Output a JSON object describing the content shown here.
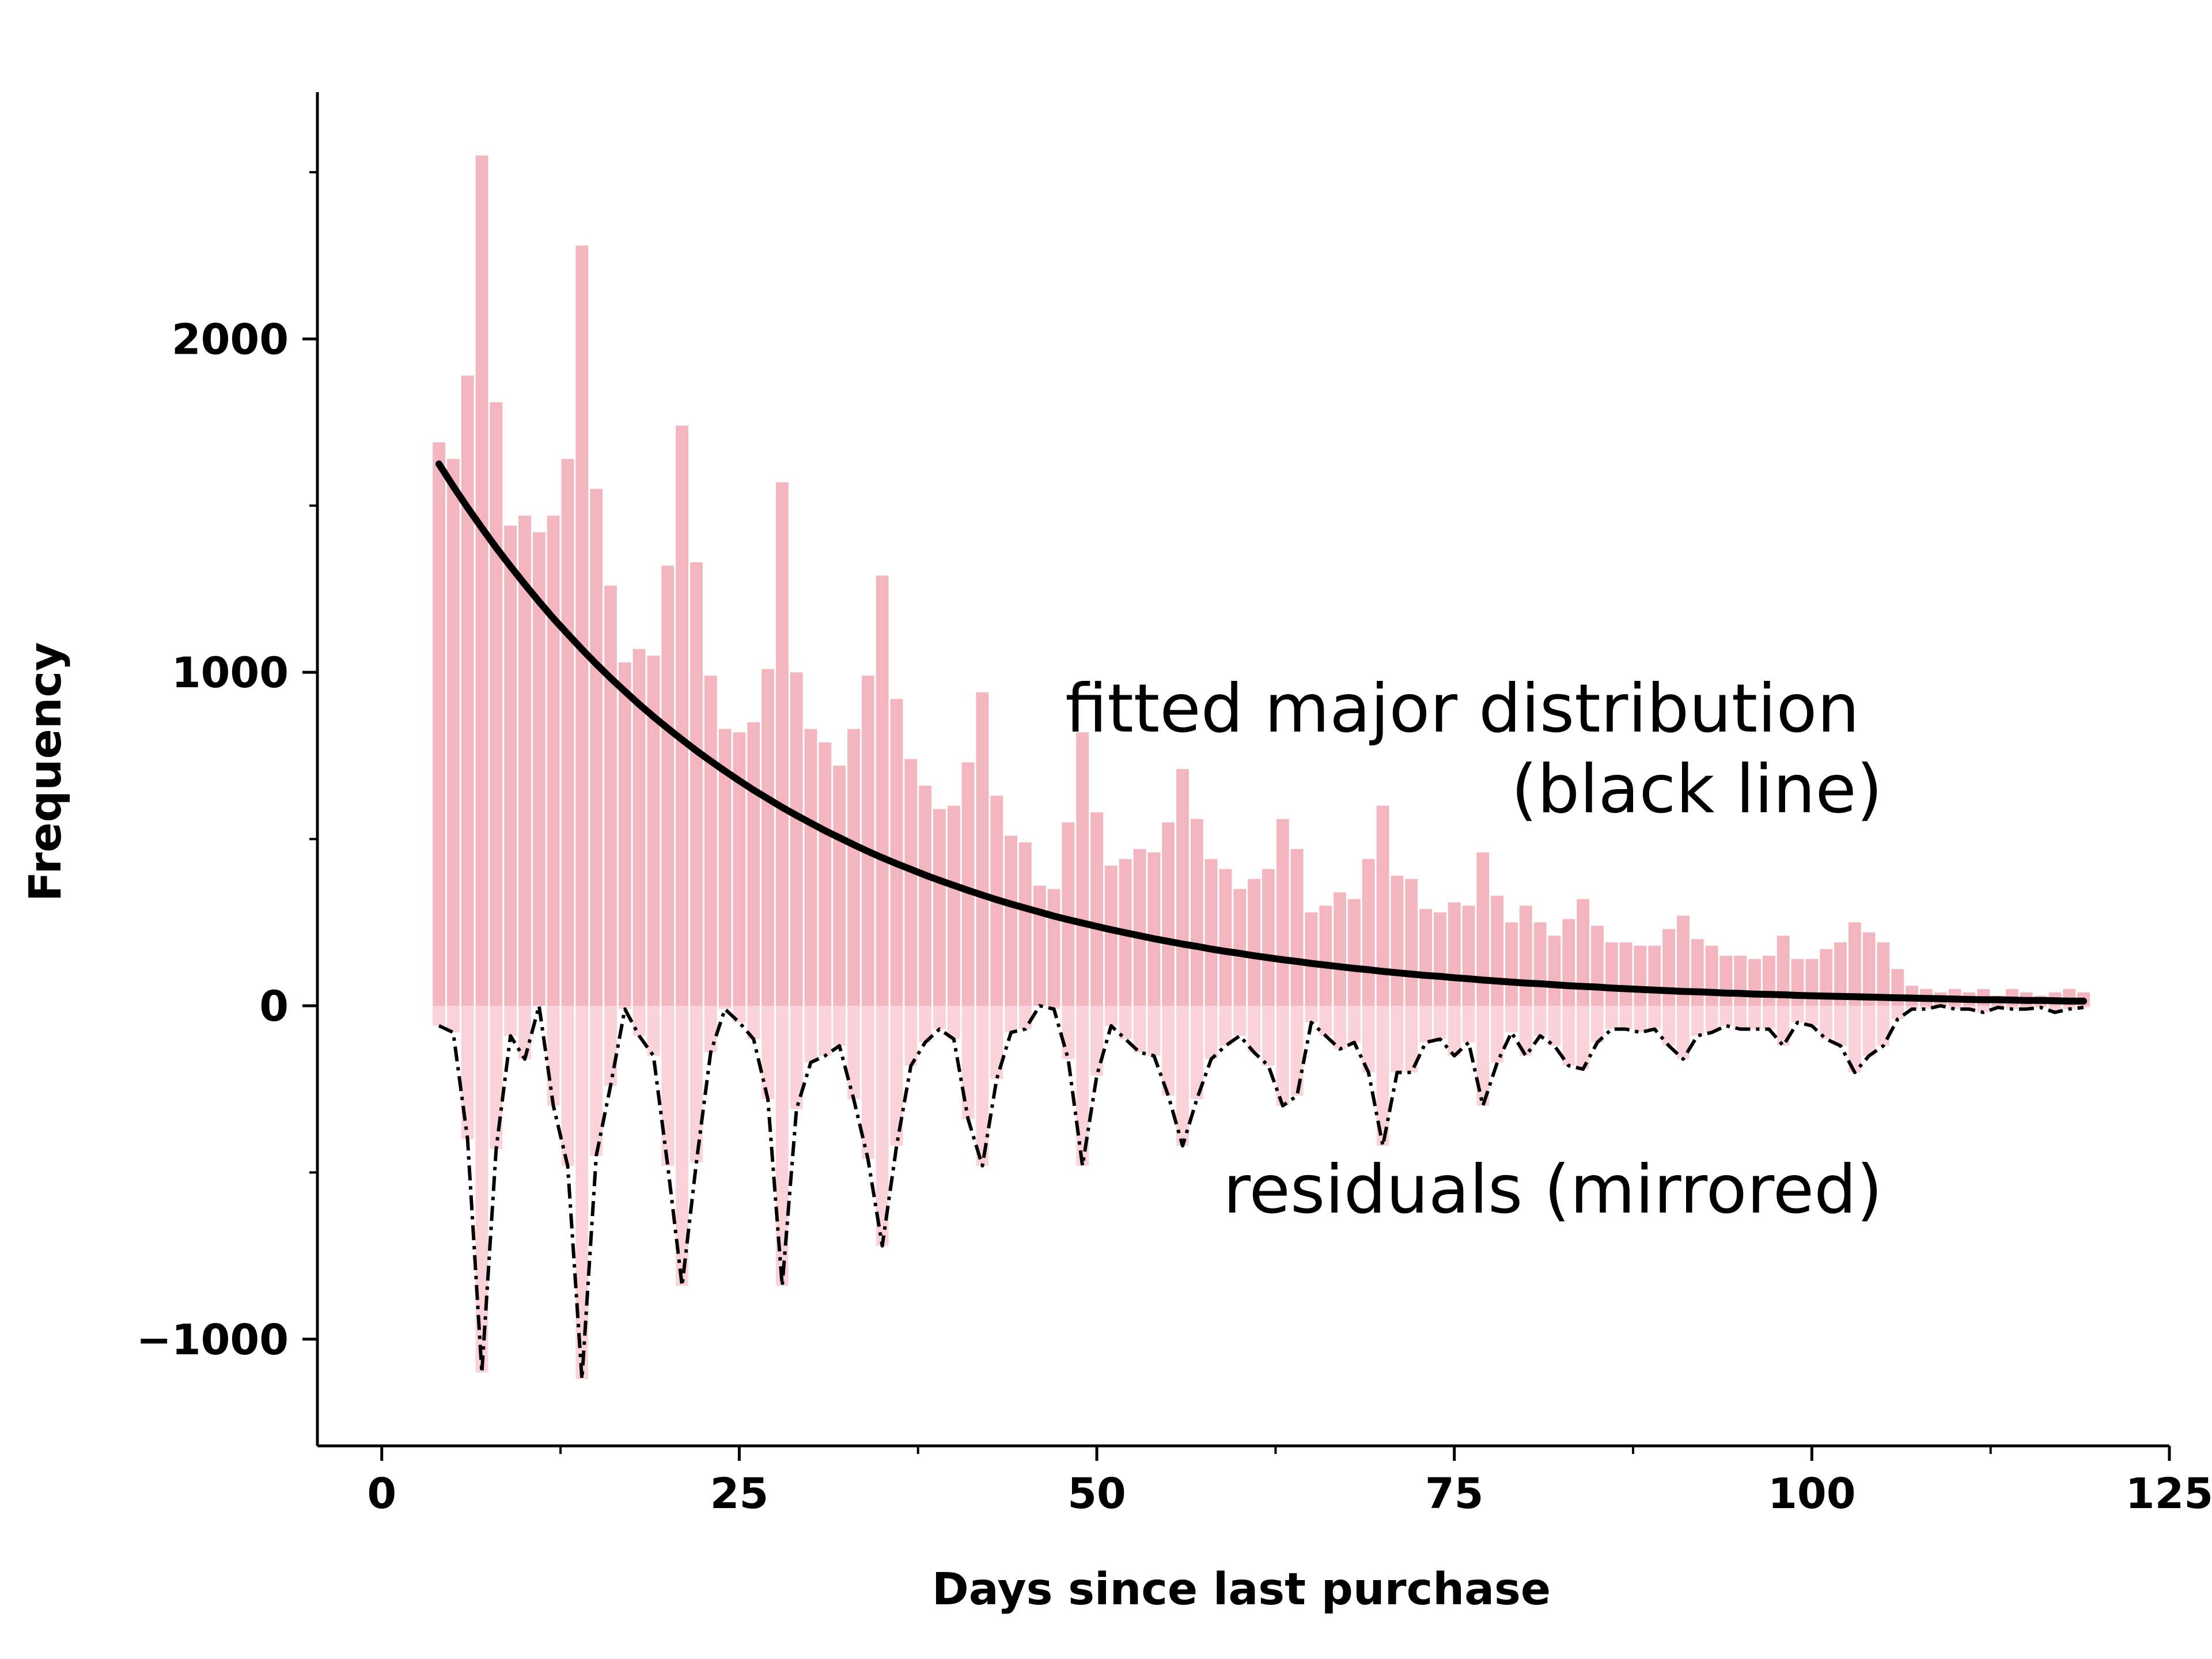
{
  "chart_data": {
    "type": "bar",
    "xlabel": "Days since last purchase",
    "ylabel": "Frequency",
    "xlim": [
      -4.5,
      125
    ],
    "ylim": [
      -1320,
      2740
    ],
    "xticks": [
      0,
      25,
      50,
      75,
      100,
      125
    ],
    "xtick_labels": [
      "0",
      "25",
      "50",
      "75",
      "100",
      "125"
    ],
    "yticks": [
      -1000,
      0,
      1000,
      2000
    ],
    "ytick_labels": [
      "−1000",
      "0",
      "1000",
      "2000"
    ],
    "grid": false,
    "colors": {
      "bars": "#f4b6be",
      "residual_bars": "#f9d3d9",
      "fit_line": "#000000",
      "residual_line": "#000000"
    },
    "annotations": [
      {
        "text": "fitted major distribution",
        "points_to": "fit line"
      },
      {
        "text": "(black line)",
        "points_to": "fit line"
      },
      {
        "text": "residuals (mirrored)",
        "points_to": "residual series"
      }
    ],
    "series": [
      {
        "kind": "bar",
        "x": [
          4,
          5,
          6,
          7,
          8,
          9,
          10,
          11,
          12,
          13,
          14,
          15,
          16,
          17,
          18,
          19,
          20,
          21,
          22,
          23,
          24,
          25,
          26,
          27,
          28,
          29,
          30,
          31,
          32,
          33,
          34,
          35,
          36,
          37,
          38,
          39,
          40,
          41,
          42,
          43,
          44,
          45,
          46,
          47,
          48,
          49,
          50,
          51,
          52,
          53,
          54,
          55,
          56,
          57,
          58,
          59,
          60,
          61,
          62,
          63,
          64,
          65,
          66,
          67,
          68,
          69,
          70,
          71,
          72,
          73,
          74,
          75,
          76,
          77,
          78,
          79,
          80,
          81,
          82,
          83,
          84,
          85,
          86,
          87,
          88,
          89,
          90,
          91,
          92,
          93,
          94,
          95,
          96,
          97,
          98,
          99,
          100,
          101,
          102,
          103,
          104,
          105,
          106,
          107,
          108,
          109,
          110,
          111,
          112,
          113,
          114,
          115,
          116,
          117,
          118,
          119
        ],
        "values": [
          1690,
          1640,
          1890,
          2550,
          1810,
          1440,
          1470,
          1420,
          1470,
          1640,
          2280,
          1550,
          1260,
          1030,
          1070,
          1050,
          1320,
          1740,
          1330,
          990,
          830,
          820,
          850,
          1010,
          1570,
          1000,
          830,
          790,
          720,
          830,
          990,
          1290,
          920,
          740,
          660,
          590,
          600,
          730,
          940,
          630,
          510,
          490,
          360,
          350,
          550,
          820,
          580,
          420,
          440,
          470,
          460,
          550,
          710,
          560,
          440,
          410,
          350,
          380,
          410,
          560,
          470,
          280,
          300,
          340,
          320,
          440,
          600,
          390,
          380,
          290,
          280,
          310,
          300,
          460,
          330,
          250,
          300,
          250,
          210,
          260,
          320,
          240,
          190,
          190,
          180,
          180,
          230,
          270,
          200,
          180,
          150,
          150,
          140,
          150,
          210,
          140,
          140,
          170,
          190,
          250,
          220,
          190,
          110,
          60,
          50,
          40,
          50,
          40,
          50,
          30,
          50,
          40,
          30,
          40,
          50,
          40
        ]
      },
      {
        "kind": "line",
        "x": [
          4,
          5,
          6,
          7,
          8,
          9,
          10,
          11,
          12,
          13,
          14,
          15,
          16,
          17,
          18,
          19,
          20,
          21,
          22,
          23,
          24,
          25,
          26,
          27,
          28,
          29,
          30,
          31,
          32,
          33,
          34,
          35,
          36,
          37,
          38,
          39,
          40,
          41,
          42,
          43,
          44,
          45,
          46,
          47,
          48,
          49,
          50,
          51,
          52,
          53,
          54,
          55,
          56,
          57,
          58,
          59,
          60,
          61,
          62,
          63,
          64,
          65,
          66,
          67,
          68,
          69,
          70,
          71,
          72,
          73,
          74,
          75,
          76,
          77,
          78,
          79,
          80,
          81,
          82,
          83,
          84,
          85,
          86,
          87,
          88,
          89,
          90,
          91,
          92,
          93,
          94,
          95,
          96,
          97,
          98,
          99,
          100,
          101,
          102,
          103,
          104,
          105,
          106,
          107,
          108,
          109,
          110,
          111,
          112,
          113,
          114,
          115,
          116,
          117,
          118,
          119
        ],
        "values": [
          1625,
          1558,
          1494,
          1433,
          1374,
          1318,
          1264,
          1212,
          1162,
          1115,
          1069,
          1025,
          983,
          943,
          904,
          867,
          832,
          798,
          765,
          734,
          704,
          675,
          647,
          621,
          595,
          571,
          548,
          525,
          504,
          483,
          463,
          444,
          426,
          409,
          392,
          376,
          361,
          346,
          332,
          318,
          305,
          293,
          281,
          269,
          258,
          248,
          238,
          228,
          219,
          210,
          201,
          193,
          185,
          178,
          170,
          163,
          157,
          150,
          144,
          138,
          133,
          127,
          122,
          117,
          112,
          108,
          103,
          99,
          95,
          91,
          88,
          84,
          81,
          77,
          74,
          71,
          68,
          66,
          63,
          60,
          58,
          56,
          53,
          51,
          49,
          47,
          45,
          43,
          42,
          40,
          38,
          37,
          35,
          34,
          33,
          31,
          30,
          29,
          28,
          27,
          26,
          25,
          24,
          23,
          22,
          21,
          20,
          19,
          18,
          18,
          17,
          16,
          16,
          15,
          14,
          14
        ]
      },
      {
        "kind": "residual",
        "x": [
          4,
          5,
          6,
          7,
          8,
          9,
          10,
          11,
          12,
          13,
          14,
          15,
          16,
          17,
          18,
          19,
          20,
          21,
          22,
          23,
          24,
          25,
          26,
          27,
          28,
          29,
          30,
          31,
          32,
          33,
          34,
          35,
          36,
          37,
          38,
          39,
          40,
          41,
          42,
          43,
          44,
          45,
          46,
          47,
          48,
          49,
          50,
          51,
          52,
          53,
          54,
          55,
          56,
          57,
          58,
          59,
          60,
          61,
          62,
          63,
          64,
          65,
          66,
          67,
          68,
          69,
          70,
          71,
          72,
          73,
          74,
          75,
          76,
          77,
          78,
          79,
          80,
          81,
          82,
          83,
          84,
          85,
          86,
          87,
          88,
          89,
          90,
          91,
          92,
          93,
          94,
          95,
          96,
          97,
          98,
          99,
          100,
          101,
          102,
          103,
          104,
          105,
          106,
          107,
          108,
          109,
          110,
          111,
          112,
          113,
          114,
          115,
          116,
          117,
          118,
          119
        ],
        "values": [
          -60,
          -80,
          -400,
          -1100,
          -430,
          -90,
          -160,
          0,
          -300,
          -480,
          -1120,
          -450,
          -240,
          -10,
          -90,
          -150,
          -480,
          -840,
          -470,
          -140,
          -10,
          -50,
          -100,
          -280,
          -840,
          -310,
          -170,
          -150,
          -120,
          -280,
          -460,
          -720,
          -420,
          -180,
          -110,
          -70,
          -100,
          -340,
          -480,
          -220,
          -80,
          -70,
          0,
          -10,
          -160,
          -480,
          -210,
          -60,
          -100,
          -140,
          -150,
          -270,
          -420,
          -280,
          -160,
          -120,
          -90,
          -140,
          -180,
          -300,
          -270,
          -50,
          -90,
          -130,
          -110,
          -200,
          -420,
          -200,
          -200,
          -110,
          -100,
          -150,
          -110,
          -300,
          -170,
          -80,
          -150,
          -90,
          -120,
          -180,
          -190,
          -110,
          -70,
          -70,
          -80,
          -70,
          -120,
          -160,
          -90,
          -80,
          -60,
          -70,
          -70,
          -70,
          -120,
          -50,
          -60,
          -100,
          -120,
          -200,
          -150,
          -120,
          -40,
          -10,
          -10,
          0,
          -10,
          -10,
          -20,
          -5,
          -10,
          -10,
          -5,
          -20,
          -10,
          -5
        ]
      }
    ]
  }
}
